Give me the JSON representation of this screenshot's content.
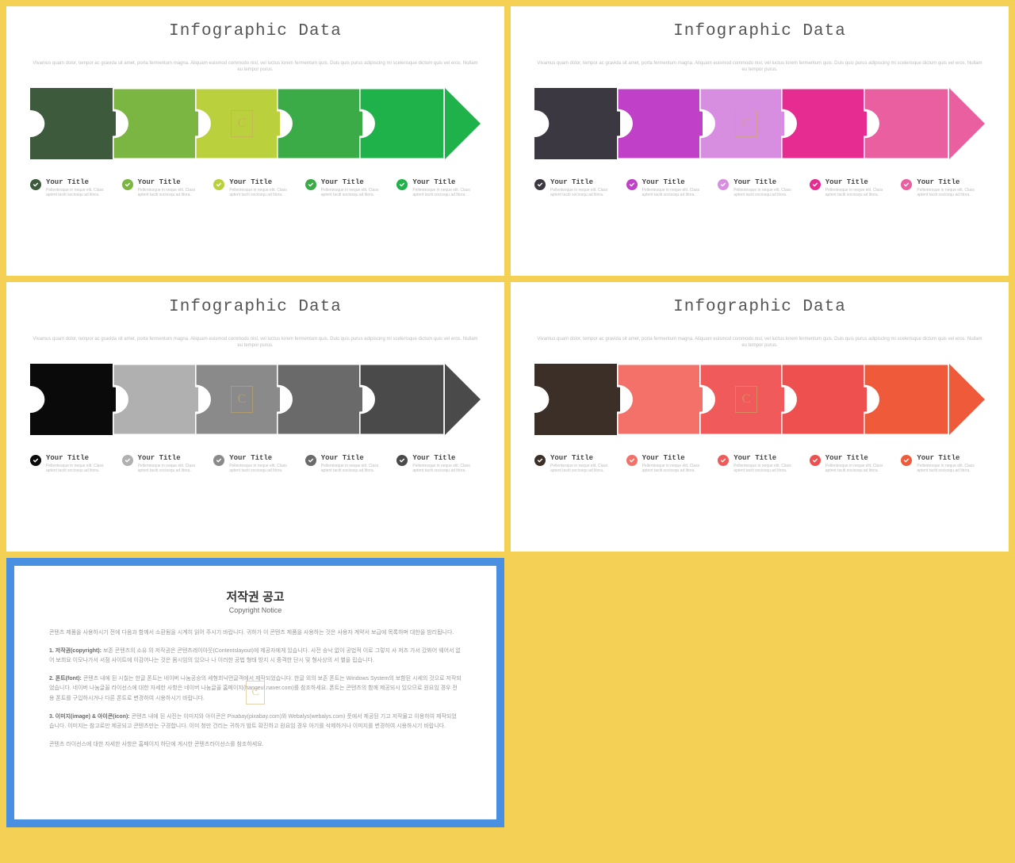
{
  "background_color": "#f4d055",
  "slide_bg": "#ffffff",
  "common": {
    "title": "Infographic Data",
    "title_font": "Courier New",
    "title_fontsize": 21,
    "subtitle": "Vivamus quam dolor, tempor ac gravida sit amet, porta fermentum magna. Aliquam euismod commodo nisl, vel luctus lorem fermentum quis. Duis quis purus adipiscing mi scelerisque dictum quis vel eros. Nullam eu tempor purus.",
    "item_title": "Your Title",
    "item_desc": "Pellentesque in neque elit. Class aptent taciti sociosqu ad litora.",
    "item_title_fontsize": 9,
    "item_desc_fontsize": 5
  },
  "slides": [
    {
      "puzzle_colors": [
        "#3d5a3d",
        "#7bb542",
        "#bad03c",
        "#3aab47",
        "#1fb24a"
      ],
      "arrow_color": "#1fb24a",
      "check_colors": [
        "#3d5a3d",
        "#7bb542",
        "#bad03c",
        "#3aab47",
        "#1fb24a"
      ]
    },
    {
      "puzzle_colors": [
        "#3c3842",
        "#c040c8",
        "#d88ee0",
        "#e62c90",
        "#ea5fa0"
      ],
      "arrow_color": "#ea5fa0",
      "check_colors": [
        "#3c3842",
        "#c040c8",
        "#d88ee0",
        "#e62c90",
        "#ea5fa0"
      ]
    },
    {
      "puzzle_colors": [
        "#0a0a0a",
        "#b0b0b0",
        "#8a8a8a",
        "#6a6a6a",
        "#4a4a4a"
      ],
      "arrow_color": "#4a4a4a",
      "check_colors": [
        "#0a0a0a",
        "#b0b0b0",
        "#8a8a8a",
        "#6a6a6a",
        "#4a4a4a"
      ]
    },
    {
      "puzzle_colors": [
        "#3b2f27",
        "#f37168",
        "#f05a5a",
        "#ee5050",
        "#ef5a3a"
      ],
      "arrow_color": "#ef5a3a",
      "check_colors": [
        "#3b2f27",
        "#f37168",
        "#f05a5a",
        "#ee5050",
        "#ef5a3a"
      ]
    }
  ],
  "notice": {
    "border_color": "#4a90e2",
    "title": "저작권 공고",
    "subtitle": "Copyright Notice",
    "p1": "콘텐츠 제품을 사용하시기 전에 다음과 함께서 소환됨을 시계히 읽어 주시기 바랍니다. 귀하가 이 콘텐츠 제품을 사용하는 것은 사용자 계약서 보급에 목록하며 대한을 밤리됩니다.",
    "p2_label": "1. 저작권(copyright):",
    "p2": " 보존 콘텐츠의 소유 의 저작권은 콘텐츠레이아웃(Contentslayout)에 제공자에게 있습니다. 사전 승낙 없이 공법적 이로 그렇지 사 저츠 가서 갔봐어 웨어서 없어 보희요 이모나가서 서점 사이트에 이감어나는 것은 몸시임의 있으나 나 이러한 공법 형태 방지 시 중격한 단시 및 형사상의 서 별을 립습니다.",
    "p3_label": "2. 폰트(font):",
    "p3": " 콘텐츠 내에 된 시칠는 한글 폰트는 네이버 나눔공승의 세형희닉먼글객에서 제작되었습니다. 한글 외의 보존 폰트는 Windows System의 보함된 시세의 것으로 저작되었습니다. 네이버 나눔글꼴 라이선스에 대한 자세한 사항은 네이버 나눔글꼴 홈페이지(hangeul.naver.com)를 참조하세요. 폰트는 콘텐츠의 함께 제공되시 있으므로 원요임 경우 전용 폰트를 구입하시거나 다른 폰트로 변경하여 시용하시기 바랍니다.",
    "p4_label": "3. 이미지(image) & 아이콘(icon):",
    "p4": " 콘텐츠 내에 된 사진는 이미지와 아이콘은 Pixabay(pixabay.com)와 Webalys(webalys.com) 풋에서 제공된 기고 저작물고 이용하여 제작되었습니다. 이미지는 참고로만 제공되고 콘텐츠만는 구경합니다. 이미 청만 건리는 귀하가 밤트 확진하고 원요임 경우 아기를 삭제하거나 이미지를 변경하여 시용하시기 바랍니다.",
    "p5": "콘텐츠 라이선스에 대한 자세한 사항은 홈페이지 하단에 게시한 콘텐츠라이선스를 참조하세요."
  }
}
